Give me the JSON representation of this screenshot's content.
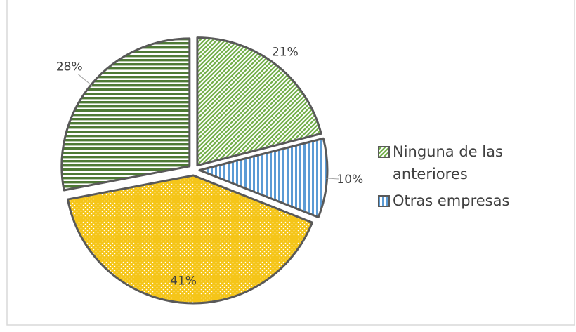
{
  "chart_data": {
    "type": "pie",
    "categories": [
      "Ninguna de las anteriores",
      "Otras empresas",
      null,
      null
    ],
    "values": [
      21,
      10,
      41,
      28
    ],
    "value_labels": [
      "21%",
      "10%",
      "41%",
      "28%"
    ],
    "colors": [
      "#70ad47",
      "#5b9bd5",
      "#f5c518",
      "#4e7a35"
    ]
  }
}
